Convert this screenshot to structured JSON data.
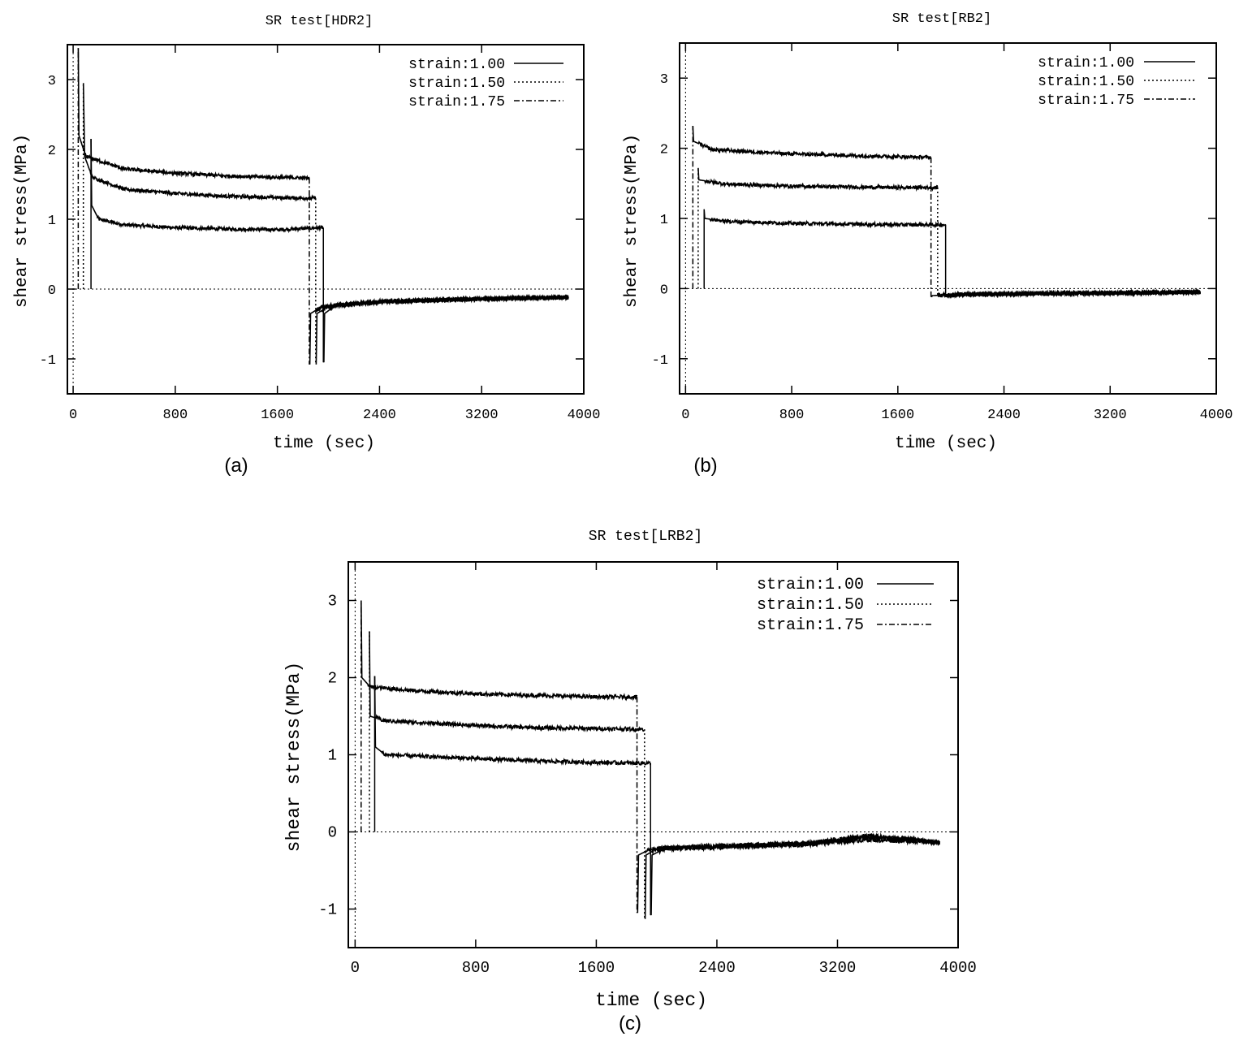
{
  "chart_data": [
    {
      "type": "line",
      "panel_label": "(a)",
      "title": "SR test[HDR2]",
      "xlabel": "time (sec)",
      "ylabel": "shear stress(MPa)",
      "xlim": [
        -45,
        4000
      ],
      "ylim": [
        -1.5,
        3.5
      ],
      "xticks": [
        0,
        800,
        1600,
        2400,
        3200,
        4000
      ],
      "xtick_labels": [
        "0",
        "800",
        "1600",
        "2400",
        "3200",
        "4000"
      ],
      "yticks": [
        -1,
        0,
        1,
        2,
        3
      ],
      "ytick_labels": [
        "-1",
        "0",
        "1",
        "2",
        "3"
      ],
      "grid": false,
      "zero_line": true,
      "legend": "top-right",
      "series": [
        {
          "name": "strain:1.00",
          "dash": "solid",
          "start": 140,
          "peak": 2.15,
          "hold_points": [
            [
              145,
              1.2
            ],
            [
              200,
              1.0
            ],
            [
              400,
              0.92
            ],
            [
              800,
              0.88
            ],
            [
              1200,
              0.86
            ],
            [
              1600,
              0.85
            ],
            [
              1960,
              0.88
            ]
          ],
          "release": 1960,
          "trough": -1.05,
          "relax_points": [
            [
              1970,
              -0.35
            ],
            [
              2050,
              -0.24
            ],
            [
              2400,
              -0.18
            ],
            [
              3200,
              -0.14
            ],
            [
              3880,
              -0.12
            ]
          ]
        },
        {
          "name": "strain:1.50",
          "dash": "dotted",
          "start": 80,
          "peak": 2.95,
          "hold_points": [
            [
              90,
              1.9
            ],
            [
              150,
              1.6
            ],
            [
              400,
              1.43
            ],
            [
              800,
              1.37
            ],
            [
              1200,
              1.33
            ],
            [
              1600,
              1.31
            ],
            [
              1900,
              1.3
            ]
          ],
          "release": 1900,
          "trough": -1.08,
          "relax_points": [
            [
              1910,
              -0.35
            ],
            [
              2000,
              -0.25
            ],
            [
              2400,
              -0.18
            ],
            [
              3200,
              -0.14
            ],
            [
              3880,
              -0.12
            ]
          ]
        },
        {
          "name": "strain:1.75",
          "dash": "dashdot",
          "start": 40,
          "peak": 3.45,
          "hold_points": [
            [
              45,
              2.2
            ],
            [
              100,
              1.9
            ],
            [
              400,
              1.72
            ],
            [
              800,
              1.66
            ],
            [
              1200,
              1.62
            ],
            [
              1600,
              1.6
            ],
            [
              1850,
              1.59
            ]
          ],
          "release": 1850,
          "trough": -1.08,
          "relax_points": [
            [
              1860,
              -0.35
            ],
            [
              1950,
              -0.25
            ],
            [
              2400,
              -0.18
            ],
            [
              3200,
              -0.14
            ],
            [
              3880,
              -0.12
            ]
          ]
        }
      ]
    },
    {
      "type": "line",
      "panel_label": "(b)",
      "title": "SR test[RB2]",
      "xlabel": "time (sec)",
      "ylabel": "shear stress(MPa)",
      "xlim": [
        -45,
        4000
      ],
      "ylim": [
        -1.5,
        3.5
      ],
      "xticks": [
        0,
        800,
        1600,
        2400,
        3200,
        4000
      ],
      "xtick_labels": [
        "0",
        "800",
        "1600",
        "2400",
        "3200",
        "4000"
      ],
      "yticks": [
        -1,
        0,
        1,
        2,
        3
      ],
      "ytick_labels": [
        "-1",
        "0",
        "1",
        "2",
        "3"
      ],
      "grid": false,
      "zero_line": true,
      "legend": "top-right",
      "series": [
        {
          "name": "strain:1.00",
          "dash": "solid",
          "start": 140,
          "peak": 1.13,
          "hold_points": [
            [
              145,
              1.0
            ],
            [
              300,
              0.96
            ],
            [
              800,
              0.93
            ],
            [
              1200,
              0.92
            ],
            [
              1600,
              0.91
            ],
            [
              1960,
              0.91
            ]
          ],
          "release": 1960,
          "trough": -0.12,
          "relax_points": [
            [
              1970,
              -0.1
            ],
            [
              2100,
              -0.08
            ],
            [
              2800,
              -0.07
            ],
            [
              3880,
              -0.05
            ]
          ]
        },
        {
          "name": "strain:1.50",
          "dash": "dotted",
          "start": 95,
          "peak": 1.72,
          "hold_points": [
            [
              100,
              1.55
            ],
            [
              300,
              1.49
            ],
            [
              800,
              1.46
            ],
            [
              1200,
              1.45
            ],
            [
              1600,
              1.44
            ],
            [
              1900,
              1.44
            ]
          ],
          "release": 1900,
          "trough": -0.12,
          "relax_points": [
            [
              1910,
              -0.1
            ],
            [
              2100,
              -0.08
            ],
            [
              2800,
              -0.07
            ],
            [
              3880,
              -0.05
            ]
          ]
        },
        {
          "name": "strain:1.75",
          "dash": "dashdot",
          "start": 55,
          "peak": 2.32,
          "hold_points": [
            [
              60,
              2.1
            ],
            [
              200,
              1.98
            ],
            [
              800,
              1.92
            ],
            [
              1200,
              1.9
            ],
            [
              1600,
              1.88
            ],
            [
              1850,
              1.87
            ]
          ],
          "release": 1850,
          "trough": -0.12,
          "relax_points": [
            [
              1860,
              -0.1
            ],
            [
              2100,
              -0.08
            ],
            [
              2800,
              -0.07
            ],
            [
              3880,
              -0.05
            ]
          ]
        }
      ]
    },
    {
      "type": "line",
      "panel_label": "(c)",
      "title": "SR test[LRB2]",
      "xlabel": "time (sec)",
      "ylabel": "shear stress(MPa)",
      "xlim": [
        -45,
        4000
      ],
      "ylim": [
        -1.5,
        3.5
      ],
      "xticks": [
        0,
        800,
        1600,
        2400,
        3200,
        4000
      ],
      "xtick_labels": [
        "0",
        "800",
        "1600",
        "2400",
        "3200",
        "4000"
      ],
      "yticks": [
        -1,
        0,
        1,
        2,
        3
      ],
      "ytick_labels": [
        "-1",
        "0",
        "1",
        "2",
        "3"
      ],
      "grid": false,
      "zero_line": true,
      "legend": "top-right",
      "series": [
        {
          "name": "strain:1.00",
          "dash": "solid",
          "start": 130,
          "peak": 2.02,
          "hold_points": [
            [
              135,
              1.1
            ],
            [
              200,
              1.0
            ],
            [
              800,
              0.95
            ],
            [
              1200,
              0.92
            ],
            [
              1600,
              0.9
            ],
            [
              1960,
              0.89
            ]
          ],
          "release": 1960,
          "trough": -1.08,
          "relax_points": [
            [
              1970,
              -0.3
            ],
            [
              2050,
              -0.22
            ],
            [
              2400,
              -0.2
            ],
            [
              3000,
              -0.16
            ],
            [
              3400,
              -0.1
            ],
            [
              3700,
              -0.12
            ],
            [
              3880,
              -0.14
            ]
          ]
        },
        {
          "name": "strain:1.50",
          "dash": "dotted",
          "start": 95,
          "peak": 2.6,
          "hold_points": [
            [
              100,
              1.5
            ],
            [
              200,
              1.44
            ],
            [
              800,
              1.38
            ],
            [
              1200,
              1.35
            ],
            [
              1600,
              1.34
            ],
            [
              1920,
              1.33
            ]
          ],
          "release": 1920,
          "trough": -1.13,
          "relax_points": [
            [
              1930,
              -0.3
            ],
            [
              2000,
              -0.22
            ],
            [
              2400,
              -0.19
            ],
            [
              3000,
              -0.15
            ],
            [
              3400,
              -0.07
            ],
            [
              3700,
              -0.1
            ],
            [
              3880,
              -0.14
            ]
          ]
        },
        {
          "name": "strain:1.75",
          "dash": "dashdot",
          "start": 40,
          "peak": 3.0,
          "hold_points": [
            [
              45,
              2.0
            ],
            [
              100,
              1.88
            ],
            [
              400,
              1.83
            ],
            [
              800,
              1.79
            ],
            [
              1200,
              1.77
            ],
            [
              1600,
              1.75
            ],
            [
              1870,
              1.75
            ]
          ],
          "release": 1870,
          "trough": -1.05,
          "relax_points": [
            [
              1880,
              -0.3
            ],
            [
              1960,
              -0.22
            ],
            [
              2400,
              -0.18
            ],
            [
              3000,
              -0.15
            ],
            [
              3400,
              -0.05
            ],
            [
              3700,
              -0.1
            ],
            [
              3880,
              -0.14
            ]
          ]
        }
      ]
    }
  ]
}
